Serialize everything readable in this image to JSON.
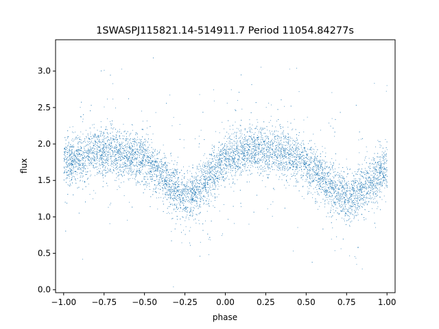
{
  "chart_data": {
    "type": "scatter",
    "title": "1SWASPJ115821.14-514911.7 Period 11054.84277s",
    "xlabel": "phase",
    "ylabel": "flux",
    "xlim": [
      -1.05,
      1.05
    ],
    "ylim": [
      -0.04,
      3.43
    ],
    "x_ticks": [
      -1.0,
      -0.75,
      -0.5,
      -0.25,
      0.0,
      0.25,
      0.5,
      0.75,
      1.0
    ],
    "x_tick_labels": [
      "−1.00",
      "−0.75",
      "−0.50",
      "−0.25",
      "0.00",
      "0.25",
      "0.50",
      "0.75",
      "1.00"
    ],
    "y_ticks": [
      0.0,
      0.5,
      1.0,
      1.5,
      2.0,
      2.5,
      3.0
    ],
    "y_tick_labels": [
      "0.0",
      "0.5",
      "1.0",
      "1.5",
      "2.0",
      "2.5",
      "3.0"
    ],
    "grid": false,
    "legend": "none",
    "point_color": "#1f77b4",
    "series": [
      {
        "description_of_trend": "folded light curve, two cycles over phase -1 to 1",
        "x": [
          -1.0,
          -0.9,
          -0.8,
          -0.7,
          -0.6,
          -0.5,
          -0.4,
          -0.3,
          -0.25,
          -0.2,
          -0.1,
          0.0,
          0.1,
          0.2,
          0.3,
          0.4,
          0.5,
          0.6,
          0.7,
          0.75,
          0.8,
          0.9,
          1.0
        ],
        "y": [
          1.75,
          1.82,
          1.9,
          1.9,
          1.85,
          1.78,
          1.6,
          1.35,
          1.25,
          1.32,
          1.55,
          1.78,
          1.88,
          1.92,
          1.92,
          1.85,
          1.72,
          1.5,
          1.32,
          1.25,
          1.3,
          1.5,
          1.7
        ]
      }
    ]
  }
}
